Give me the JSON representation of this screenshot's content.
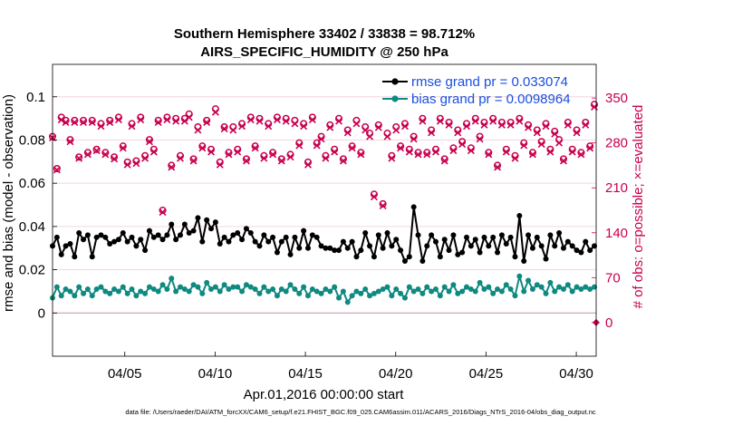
{
  "chart_data": {
    "type": "line",
    "title_line1": "Southern Hemisphere 33402 / 33838 = 98.712%",
    "title_line2": "AIRS_SPECIFIC_HUMIDITY @ 250 hPa",
    "xlabel": "Apr.01,2016 00:00:00 start",
    "ylabel": "rmse and bias (model - observation)",
    "y2label": "# of obs: o=possible; ×=evaluated",
    "footnote": "data file: /Users/raeder/DAI/ATM_forcXX/CAM6_setup/f.e21.FHIST_BGC.f09_025.CAM6assim.011/ACARS_2016/Diags_NTrS_2016-04/obs_diag_output.nc",
    "xlim": [
      1,
      31.1
    ],
    "ylim": [
      -0.02,
      0.115
    ],
    "y2lim": [
      -52.5,
      402.5
    ],
    "x_ticks": [
      5,
      10,
      15,
      20,
      25,
      30
    ],
    "x_tick_labels": [
      "04/05",
      "04/10",
      "04/15",
      "04/20",
      "04/25",
      "04/30"
    ],
    "y_ticks": [
      0,
      0.02,
      0.04,
      0.06,
      0.08,
      0.1
    ],
    "y_tick_labels": [
      "0",
      "0.02",
      "0.04",
      "0.06",
      "0.08",
      "0.1"
    ],
    "y2_ticks": [
      0,
      70,
      140,
      210,
      280,
      350
    ],
    "y2_tick_labels": [
      "0",
      "70",
      "140",
      "210",
      "280",
      "350"
    ],
    "legend": [
      "rmse grand pr = 0.033074",
      "bias grand pr = 0.0098964"
    ],
    "colors": {
      "rmse": "#000000",
      "bias": "#0e8a80",
      "obs": "#c8004e",
      "zero": "#c9a0b4",
      "grid": "#f2d6de",
      "legend_text": "#1a4fe0"
    },
    "rmse_values": [
      0.031,
      0.035,
      0.027,
      0.031,
      0.032,
      0.026,
      0.037,
      0.034,
      0.036,
      0.026,
      0.035,
      0.036,
      0.035,
      0.032,
      0.033,
      0.034,
      0.037,
      0.033,
      0.035,
      0.031,
      0.034,
      0.029,
      0.038,
      0.035,
      0.036,
      0.034,
      0.036,
      0.041,
      0.034,
      0.036,
      0.041,
      0.037,
      0.038,
      0.044,
      0.033,
      0.043,
      0.039,
      0.042,
      0.032,
      0.035,
      0.033,
      0.036,
      0.037,
      0.034,
      0.039,
      0.037,
      0.033,
      0.031,
      0.036,
      0.033,
      0.035,
      0.028,
      0.033,
      0.035,
      0.027,
      0.035,
      0.03,
      0.038,
      0.03,
      0.036,
      0.035,
      0.031,
      0.03,
      0.03,
      0.029,
      0.029,
      0.033,
      0.03,
      0.033,
      0.026,
      0.029,
      0.037,
      0.031,
      0.026,
      0.036,
      0.03,
      0.037,
      0.031,
      0.034,
      0.029,
      0.024,
      0.026,
      0.049,
      0.036,
      0.024,
      0.031,
      0.036,
      0.033,
      0.026,
      0.034,
      0.029,
      0.036,
      0.027,
      0.028,
      0.035,
      0.031,
      0.034,
      0.028,
      0.035,
      0.031,
      0.035,
      0.028,
      0.036,
      0.032,
      0.035,
      0.026,
      0.045,
      0.024,
      0.036,
      0.03,
      0.035,
      0.031,
      0.025,
      0.036,
      0.031,
      0.037,
      0.03,
      0.033,
      0.031,
      0.029,
      0.028,
      0.033,
      0.029,
      0.031
    ],
    "bias_values": [
      0.007,
      0.012,
      0.008,
      0.011,
      0.01,
      0.008,
      0.012,
      0.009,
      0.011,
      0.008,
      0.011,
      0.012,
      0.01,
      0.009,
      0.011,
      0.01,
      0.012,
      0.009,
      0.011,
      0.008,
      0.01,
      0.009,
      0.012,
      0.011,
      0.01,
      0.013,
      0.011,
      0.016,
      0.01,
      0.012,
      0.011,
      0.01,
      0.013,
      0.012,
      0.009,
      0.014,
      0.011,
      0.012,
      0.01,
      0.013,
      0.011,
      0.012,
      0.012,
      0.01,
      0.013,
      0.012,
      0.011,
      0.009,
      0.012,
      0.01,
      0.011,
      0.008,
      0.011,
      0.01,
      0.013,
      0.011,
      0.009,
      0.012,
      0.008,
      0.011,
      0.01,
      0.009,
      0.011,
      0.01,
      0.012,
      0.007,
      0.01,
      0.005,
      0.008,
      0.01,
      0.009,
      0.011,
      0.008,
      0.009,
      0.01,
      0.011,
      0.012,
      0.008,
      0.011,
      0.009,
      0.007,
      0.012,
      0.01,
      0.011,
      0.009,
      0.012,
      0.01,
      0.011,
      0.008,
      0.012,
      0.01,
      0.013,
      0.009,
      0.01,
      0.012,
      0.011,
      0.01,
      0.014,
      0.011,
      0.012,
      0.009,
      0.011,
      0.01,
      0.013,
      0.011,
      0.008,
      0.017,
      0.01,
      0.015,
      0.011,
      0.013,
      0.012,
      0.009,
      0.014,
      0.01,
      0.012,
      0.011,
      0.013,
      0.01,
      0.012,
      0.011,
      0.012,
      0.011,
      0.012
    ],
    "obs_possible": [
      290,
      240,
      320,
      315,
      285,
      315,
      258,
      315,
      265,
      315,
      270,
      310,
      265,
      315,
      258,
      320,
      275,
      250,
      310,
      252,
      320,
      260,
      285,
      270,
      315,
      175,
      320,
      245,
      318,
      260,
      318,
      325,
      255,
      305,
      275,
      315,
      270,
      333,
      250,
      305,
      265,
      305,
      270,
      310,
      255,
      320,
      275,
      318,
      260,
      310,
      265,
      320,
      255,
      318,
      262,
      315,
      280,
      310,
      250,
      320,
      280,
      290,
      260,
      308,
      270,
      318,
      255,
      300,
      275,
      315,
      265,
      305,
      295,
      200,
      308,
      185,
      295,
      260,
      305,
      275,
      310,
      270,
      290,
      265,
      318,
      265,
      300,
      270,
      318,
      255,
      312,
      272,
      300,
      282,
      310,
      272,
      318,
      290,
      312,
      265,
      318,
      245,
      312,
      270,
      312,
      260,
      318,
      280,
      308,
      265,
      300,
      282,
      310,
      270,
      298,
      285,
      255,
      312,
      270,
      300,
      265,
      312,
      275,
      340
    ],
    "obs_evaluated": [
      288,
      238,
      316,
      312,
      282,
      312,
      256,
      312,
      262,
      312,
      268,
      306,
      262,
      312,
      255,
      316,
      272,
      246,
      306,
      248,
      316,
      256,
      282,
      266,
      312,
      172,
      316,
      242,
      314,
      256,
      314,
      320,
      252,
      300,
      272,
      312,
      266,
      328,
      246,
      302,
      262,
      300,
      266,
      306,
      252,
      316,
      272,
      314,
      256,
      306,
      262,
      316,
      252,
      314,
      258,
      310,
      276,
      306,
      246,
      316,
      276,
      286,
      256,
      304,
      266,
      314,
      252,
      296,
      272,
      310,
      262,
      300,
      290,
      196,
      304,
      182,
      290,
      256,
      300,
      272,
      306,
      266,
      286,
      262,
      314,
      262,
      296,
      266,
      314,
      252,
      308,
      268,
      296,
      278,
      306,
      268,
      314,
      286,
      308,
      262,
      314,
      242,
      308,
      266,
      308,
      256,
      314,
      276,
      304,
      262,
      296,
      278,
      306,
      266,
      294,
      280,
      252,
      308,
      266,
      296,
      262,
      308,
      272,
      336
    ]
  }
}
